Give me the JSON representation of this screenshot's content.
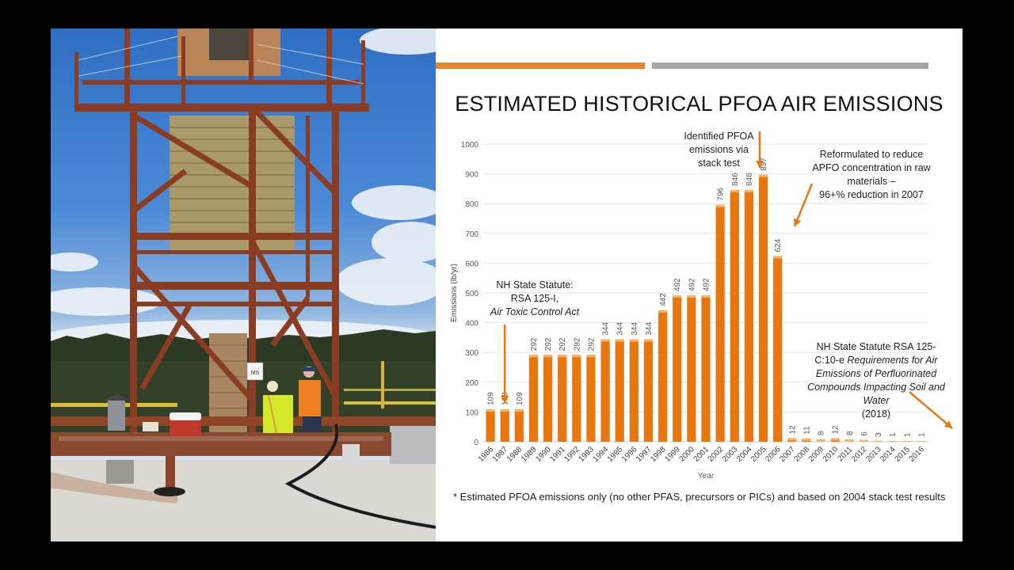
{
  "slide": {
    "title": "ESTIMATED HISTORICAL PFOA AIR EMISSIONS",
    "accent_colors": {
      "orange": "#e8862e",
      "gray": "#a3a6a9",
      "bar": "#e8770f"
    },
    "footnote": "* Estimated PFOA emissions only (no other PFAS, precursors or PICs) and based on 2004 stack test results",
    "photo": {
      "description": "Rooftop emissions stack with rusted steel support tower; workers in safety vests performing stack test",
      "sign_text": "MS"
    }
  },
  "annotations": {
    "nh_statute_1": {
      "line1": "NH State Statute:",
      "line2": "RSA 125-I,",
      "line3": "Air Toxic Control Act"
    },
    "stack_test": {
      "line1": "Identified PFOA",
      "line2": "emissions via",
      "line3": "stack test"
    },
    "reformulated": {
      "line1": "Reformulated to reduce",
      "line2": "APFO concentration in raw",
      "line3": "materials –",
      "line4": "96+% reduction in 2007"
    },
    "nh_statute_2": {
      "line1": "NH State Statute RSA 125-",
      "line2_plain": "C:10-e ",
      "line2_italic": "Requirements for Air",
      "line3": "Emissions of Perfluorinated",
      "line4": "Compounds Impacting Soil and",
      "line5": "Water",
      "line6": "(2018)"
    }
  },
  "chart_data": {
    "type": "bar",
    "title": "ESTIMATED HISTORICAL PFOA AIR EMISSIONS",
    "xlabel": "Year",
    "ylabel": "Emissions (lb/yr)",
    "ylim": [
      0,
      1000
    ],
    "yticks": [
      0,
      100,
      200,
      300,
      400,
      500,
      600,
      700,
      800,
      900,
      1000
    ],
    "grid": true,
    "legend": "none",
    "data_labels": true,
    "categories": [
      "1986",
      "1987",
      "1988",
      "1989",
      "1990",
      "1991",
      "1992",
      "1993",
      "1994",
      "1995",
      "1996",
      "1997",
      "1998",
      "1999",
      "2000",
      "2001",
      "2002",
      "2003",
      "2004",
      "2005",
      "2006",
      "2007",
      "2008",
      "2009",
      "2010",
      "2011",
      "2012",
      "2013",
      "2014",
      "2015",
      "2016"
    ],
    "values": [
      109,
      109,
      109,
      292,
      292,
      292,
      292,
      292,
      344,
      344,
      344,
      344,
      442,
      492,
      492,
      492,
      796,
      846,
      846,
      897,
      624,
      12,
      11,
      8,
      12,
      8,
      6,
      3,
      1,
      1,
      1
    ],
    "annotations": [
      "NH State Statute: RSA 125-I, Air Toxic Control Act (arrow to 1987)",
      "Identified PFOA emissions via stack test (arrow to 2004)",
      "Reformulated to reduce APFO concentration in raw materials – 96+% reduction in 2007 (arrow to 2006)",
      "NH State Statute RSA 125-C:10-e Requirements for Air Emissions of Perfluorinated Compounds Impacting Soil and Water (2018) (arrow to beyond 2016)"
    ]
  }
}
